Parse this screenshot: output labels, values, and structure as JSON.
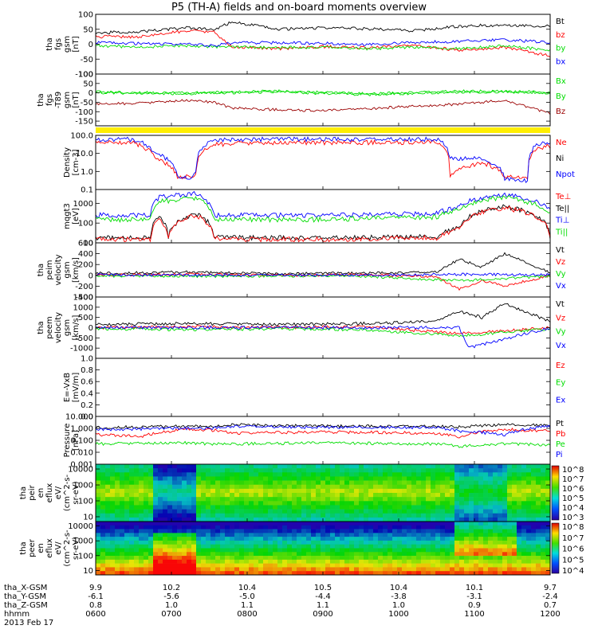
{
  "title": "P5 (TH-A) fields and on-board moments overview",
  "colors": {
    "black": "#000000",
    "red": "#ff0000",
    "green": "#00dd00",
    "blue": "#0000ff",
    "darkred": "#9b0000",
    "yellow": "#ffee00"
  },
  "chart_data": [
    {
      "id": "fgs",
      "type": "line",
      "ylabel": [
        "tha",
        "fgs",
        "gsm",
        "[nT]"
      ],
      "ylim": [
        -100,
        100
      ],
      "yticks": [
        100,
        50,
        0,
        -50,
        -100
      ],
      "legend": [
        {
          "label": "Bt",
          "color": "#000000"
        },
        {
          "label": "bz",
          "color": "#ff0000"
        },
        {
          "label": "by",
          "color": "#00dd00"
        },
        {
          "label": "bx",
          "color": "#0000ff"
        }
      ],
      "series": [
        {
          "name": "Bt",
          "color": "#000000",
          "x": [
            0,
            0.1,
            0.2,
            0.26,
            0.3,
            0.4,
            0.5,
            0.6,
            0.7,
            0.8,
            0.9,
            1
          ],
          "y": [
            38,
            42,
            55,
            48,
            75,
            50,
            55,
            52,
            45,
            60,
            65,
            60
          ]
        },
        {
          "name": "bz",
          "color": "#ff0000",
          "x": [
            0,
            0.1,
            0.2,
            0.26,
            0.3,
            0.4,
            0.5,
            0.6,
            0.7,
            0.8,
            0.9,
            1
          ],
          "y": [
            25,
            25,
            45,
            40,
            -10,
            -15,
            -8,
            -12,
            -5,
            -20,
            -10,
            -40
          ]
        },
        {
          "name": "by",
          "color": "#00dd00",
          "x": [
            0,
            0.1,
            0.2,
            0.26,
            0.3,
            0.4,
            0.5,
            0.6,
            0.7,
            0.8,
            0.9,
            1
          ],
          "y": [
            -5,
            -10,
            -5,
            -8,
            -10,
            -12,
            -10,
            -15,
            -10,
            -15,
            -5,
            -20
          ]
        },
        {
          "name": "bx",
          "color": "#0000ff",
          "x": [
            0,
            0.1,
            0.2,
            0.26,
            0.3,
            0.4,
            0.5,
            0.6,
            0.7,
            0.8,
            0.9,
            1
          ],
          "y": [
            5,
            2,
            0,
            -5,
            5,
            5,
            3,
            0,
            5,
            10,
            15,
            5
          ]
        }
      ]
    },
    {
      "id": "fgs_rbg",
      "type": "line",
      "ylabel": [
        "tha",
        "fgs",
        "-T89",
        "gsm",
        "[nT]"
      ],
      "ylim": [
        -175,
        100
      ],
      "yticks": [
        100,
        50,
        0,
        -50,
        -100,
        -150
      ],
      "legend": [
        {
          "label": "Bx",
          "color": "#00dd00"
        },
        {
          "label": "By",
          "color": "#00dd00"
        },
        {
          "label": "Bz",
          "color": "#9b0000"
        }
      ],
      "series": [
        {
          "name": "Bx",
          "color": "#00dd00",
          "x": [
            0,
            0.2,
            0.4,
            0.6,
            0.8,
            1
          ],
          "y": [
            5,
            0,
            10,
            -5,
            10,
            5
          ]
        },
        {
          "name": "By",
          "color": "#00dd00",
          "x": [
            0,
            0.2,
            0.4,
            0.6,
            0.8,
            1
          ],
          "y": [
            0,
            -5,
            5,
            -10,
            5,
            0
          ]
        },
        {
          "name": "Bz",
          "color": "#9b0000",
          "x": [
            0,
            0.1,
            0.2,
            0.26,
            0.3,
            0.4,
            0.5,
            0.6,
            0.7,
            0.8,
            0.9,
            1
          ],
          "y": [
            -60,
            -55,
            -40,
            -50,
            -80,
            -90,
            -95,
            -85,
            -70,
            -60,
            -40,
            -110
          ]
        }
      ]
    },
    {
      "id": "density",
      "type": "line",
      "scale": "log",
      "ylabel": [
        "Density",
        "[cm-3]"
      ],
      "ylim": [
        0.1,
        100
      ],
      "yticks": [
        "100.0",
        "10.0",
        "1.0",
        "0.1"
      ],
      "legend": [
        {
          "label": "Ne",
          "color": "#ff0000"
        },
        {
          "label": "Ni",
          "color": "#000000"
        },
        {
          "label": "Npot",
          "color": "#0000ff"
        }
      ],
      "series": [
        {
          "name": "Ne",
          "color": "#ff0000",
          "x": [
            0,
            0.08,
            0.13,
            0.18,
            0.21,
            0.22,
            0.26,
            0.3,
            0.5,
            0.75,
            0.78,
            0.85,
            0.9,
            0.95,
            0.97,
            1
          ],
          "y": [
            40,
            40,
            5,
            0.5,
            0.5,
            0.6,
            30,
            35,
            40,
            40,
            0.5,
            3,
            0.5,
            0.5,
            20,
            25
          ]
        },
        {
          "name": "Npot",
          "color": "#0000ff",
          "x": [
            0,
            0.08,
            0.13,
            0.18,
            0.21,
            0.22,
            0.26,
            0.3,
            0.5,
            0.75,
            0.78,
            0.85,
            0.9,
            0.95,
            0.97,
            1
          ],
          "y": [
            60,
            60,
            10,
            0.5,
            0.4,
            1,
            50,
            60,
            60,
            60,
            5,
            5,
            0.4,
            0.3,
            30,
            40
          ]
        }
      ]
    },
    {
      "id": "temperature",
      "type": "line",
      "scale": "log",
      "ylabel": [
        "mqgt3",
        "[eV]"
      ],
      "ylim": [
        10,
        5000
      ],
      "yticks": [
        "1000",
        "100",
        "10"
      ],
      "legend": [
        {
          "label": "Te⊥",
          "color": "#ff0000"
        },
        {
          "label": "Te||",
          "color": "#000000"
        },
        {
          "label": "Ti⊥",
          "color": "#0000ff"
        },
        {
          "label": "Ti||",
          "color": "#00dd00"
        }
      ],
      "series": [
        {
          "name": "Ti⊥",
          "color": "#0000ff",
          "x": [
            0,
            0.12,
            0.14,
            0.22,
            0.26,
            0.3,
            0.5,
            0.75,
            0.8,
            0.85,
            0.9,
            1
          ],
          "y": [
            250,
            250,
            2000,
            3000,
            250,
            250,
            250,
            300,
            700,
            2000,
            3000,
            400
          ]
        },
        {
          "name": "Ti||",
          "color": "#00dd00",
          "x": [
            0,
            0.12,
            0.14,
            0.22,
            0.26,
            0.3,
            0.5,
            0.75,
            0.8,
            0.85,
            0.9,
            1
          ],
          "y": [
            150,
            150,
            1200,
            1800,
            150,
            150,
            150,
            200,
            500,
            1500,
            2000,
            300
          ]
        },
        {
          "name": "Te||",
          "color": "#000000",
          "x": [
            0,
            0.12,
            0.14,
            0.16,
            0.22,
            0.26,
            0.3,
            0.5,
            0.75,
            0.8,
            0.85,
            0.9,
            1
          ],
          "y": [
            18,
            18,
            200,
            20,
            300,
            20,
            18,
            18,
            20,
            60,
            400,
            700,
            20
          ]
        },
        {
          "name": "Te⊥",
          "color": "#ff0000",
          "x": [
            0,
            0.12,
            0.14,
            0.16,
            0.22,
            0.26,
            0.3,
            0.5,
            0.75,
            0.8,
            0.85,
            0.9,
            1
          ],
          "y": [
            15,
            15,
            150,
            18,
            250,
            18,
            15,
            15,
            18,
            50,
            350,
            600,
            18
          ]
        }
      ]
    },
    {
      "id": "peim_velocity",
      "type": "line",
      "ylabel": [
        "tha",
        "peim",
        "velocity",
        "gsm",
        "[km/s]"
      ],
      "ylim": [
        -400,
        600
      ],
      "yticks": [
        600,
        400,
        200,
        0,
        -200,
        -400
      ],
      "legend": [
        {
          "label": "Vt",
          "color": "#000000"
        },
        {
          "label": "Vz",
          "color": "#ff0000"
        },
        {
          "label": "Vy",
          "color": "#00dd00"
        },
        {
          "label": "Vx",
          "color": "#0000ff"
        }
      ],
      "series": [
        {
          "name": "Vt",
          "color": "#000000",
          "x": [
            0,
            0.2,
            0.4,
            0.6,
            0.75,
            0.8,
            0.85,
            0.9,
            1
          ],
          "y": [
            40,
            60,
            30,
            40,
            60,
            300,
            150,
            400,
            50
          ]
        },
        {
          "name": "Vz",
          "color": "#ff0000",
          "x": [
            0,
            0.2,
            0.4,
            0.6,
            0.75,
            0.8,
            0.85,
            0.9,
            1
          ],
          "y": [
            0,
            20,
            0,
            10,
            -20,
            -250,
            -100,
            -200,
            0
          ]
        },
        {
          "name": "Vy",
          "color": "#00dd00",
          "x": [
            0,
            0.2,
            0.4,
            0.6,
            0.8,
            1
          ],
          "y": [
            -10,
            -20,
            -10,
            -20,
            -100,
            -20
          ]
        },
        {
          "name": "Vx",
          "color": "#0000ff",
          "x": [
            0,
            0.2,
            0.4,
            0.6,
            0.8,
            1
          ],
          "y": [
            10,
            0,
            5,
            0,
            20,
            10
          ]
        }
      ]
    },
    {
      "id": "peem_velocity",
      "type": "line",
      "ylabel": [
        "tha",
        "peem",
        "velocity",
        "gsm",
        "[km/s]"
      ],
      "ylim": [
        -1500,
        1500
      ],
      "yticks": [
        1500,
        1000,
        500,
        0,
        -500,
        -1000
      ],
      "legend": [
        {
          "label": "Vt",
          "color": "#000000"
        },
        {
          "label": "Vz",
          "color": "#ff0000"
        },
        {
          "label": "Vy",
          "color": "#00dd00"
        },
        {
          "label": "Vx",
          "color": "#0000ff"
        }
      ],
      "series": [
        {
          "name": "Vt",
          "color": "#000000",
          "x": [
            0,
            0.2,
            0.4,
            0.6,
            0.75,
            0.8,
            0.85,
            0.9,
            1
          ],
          "y": [
            150,
            200,
            150,
            200,
            300,
            800,
            500,
            1200,
            300
          ]
        },
        {
          "name": "Vz",
          "color": "#ff0000",
          "x": [
            0,
            0.2,
            0.4,
            0.6,
            0.8,
            1
          ],
          "y": [
            0,
            50,
            0,
            50,
            -300,
            0
          ]
        },
        {
          "name": "Vy",
          "color": "#00dd00",
          "x": [
            0,
            0.2,
            0.4,
            0.6,
            0.8,
            1
          ],
          "y": [
            -50,
            -100,
            -50,
            -100,
            -400,
            -50
          ]
        },
        {
          "name": "Vx",
          "color": "#0000ff",
          "x": [
            0,
            0.2,
            0.4,
            0.6,
            0.8,
            0.82,
            1
          ],
          "y": [
            0,
            0,
            0,
            0,
            0,
            -1000,
            0
          ]
        }
      ]
    },
    {
      "id": "efield",
      "type": "line",
      "ylabel": [
        "E=-VxB",
        "[mV/m]"
      ],
      "ylim": [
        0,
        1
      ],
      "yticks": [
        "1.0",
        "0.8",
        "0.6",
        "0.4",
        "0.2",
        "0.0"
      ],
      "legend": [
        {
          "label": "Ez",
          "color": "#ff0000"
        },
        {
          "label": "Ey",
          "color": "#00dd00"
        },
        {
          "label": "Ex",
          "color": "#0000ff"
        }
      ],
      "series": []
    },
    {
      "id": "pressure",
      "type": "line",
      "scale": "log",
      "ylabel": [
        "Pressure",
        "[nPa]"
      ],
      "ylim": [
        0.001,
        10
      ],
      "yticks": [
        "10.000",
        "1.000",
        "0.100",
        "0.010",
        "0.001"
      ],
      "legend": [
        {
          "label": "Pt",
          "color": "#000000"
        },
        {
          "label": "Pb",
          "color": "#ff0000"
        },
        {
          "label": "Pe",
          "color": "#00dd00"
        },
        {
          "label": "Pi",
          "color": "#0000ff"
        }
      ],
      "series": [
        {
          "name": "Pt",
          "color": "#000000",
          "x": [
            0,
            0.2,
            0.26,
            0.3,
            0.5,
            0.75,
            0.8,
            0.9,
            1
          ],
          "y": [
            1.2,
            1.5,
            1.4,
            2,
            1.5,
            1.5,
            1.3,
            2,
            1.8
          ]
        },
        {
          "name": "Pb",
          "color": "#ff0000",
          "x": [
            0,
            0.1,
            0.2,
            0.26,
            0.3,
            0.5,
            0.75,
            0.8,
            0.9,
            1
          ],
          "y": [
            0.3,
            0.2,
            0.8,
            0.7,
            0.4,
            0.5,
            0.4,
            0.2,
            0.8,
            0.6
          ]
        },
        {
          "name": "Pe",
          "color": "#00dd00",
          "x": [
            0,
            0.2,
            0.26,
            0.3,
            0.5,
            0.75,
            0.8,
            0.9,
            1
          ],
          "y": [
            0.05,
            0.06,
            0.05,
            0.05,
            0.06,
            0.05,
            0.03,
            0.05,
            0.04
          ]
        },
        {
          "name": "Pi",
          "color": "#0000ff",
          "x": [
            0,
            0.2,
            0.26,
            0.3,
            0.5,
            0.75,
            0.8,
            0.9,
            1
          ],
          "y": [
            0.8,
            1,
            1,
            1.5,
            1.2,
            1.2,
            0.6,
            0.3,
            1.5
          ]
        }
      ]
    },
    {
      "id": "peir_eflux",
      "type": "heatmap",
      "scale": "log",
      "ylabel": [
        "tha",
        "peir",
        "en",
        "eflux",
        "eV/",
        "(cm^2-s-",
        "sr-eV)"
      ],
      "ylim": [
        5,
        20000
      ],
      "yticks": [
        "10000",
        "1000",
        "100",
        "10"
      ],
      "colorbar": {
        "min_exp": 3,
        "max_exp": 8,
        "labels": [
          "10^8",
          "10^7",
          "10^6",
          "10^5",
          "10^4",
          "10^3"
        ]
      }
    },
    {
      "id": "peer_eflux",
      "type": "heatmap",
      "scale": "log",
      "ylabel": [
        "tha",
        "peer",
        "en",
        "eflux",
        "eV/",
        "(cm^2-s-",
        "sr-eV)"
      ],
      "ylim": [
        5,
        20000
      ],
      "yticks": [
        "10000",
        "1000",
        "100",
        "10"
      ],
      "colorbar": {
        "min_exp": 4,
        "max_exp": 8,
        "labels": [
          "10^8",
          "10^7",
          "10^6",
          "10^5",
          "10^4"
        ]
      }
    }
  ],
  "xaxis": {
    "rows": [
      {
        "label": "tha_X-GSM",
        "values": [
          "9.9",
          "10.2",
          "10.4",
          "10.5",
          "10.4",
          "10.1",
          "9.7"
        ]
      },
      {
        "label": "tha_Y-GSM",
        "values": [
          "-6.1",
          "-5.6",
          "-5.0",
          "-4.4",
          "-3.8",
          "-3.1",
          "-2.4"
        ]
      },
      {
        "label": "tha_Z-GSM",
        "values": [
          "0.8",
          "1.0",
          "1.1",
          "1.1",
          "1.0",
          "0.9",
          "0.7"
        ]
      },
      {
        "label": "hhmm",
        "values": [
          "0600",
          "0700",
          "0800",
          "0900",
          "1000",
          "1100",
          "1200"
        ]
      }
    ],
    "date": "2013 Feb 17"
  }
}
